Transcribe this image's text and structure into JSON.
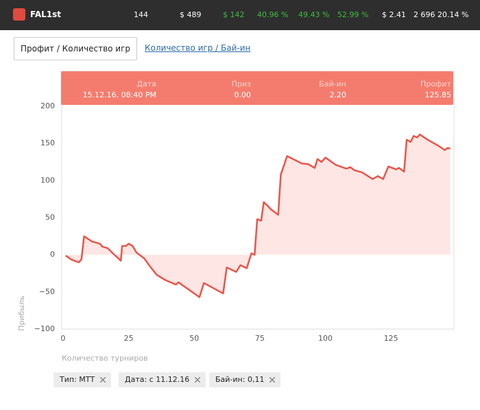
{
  "header": {
    "user": "FAL1st",
    "stats": [
      {
        "text": "144",
        "color": "#ffffff"
      },
      {
        "text": "$ 489",
        "color": "#ffffff"
      },
      {
        "text": "$ 142",
        "color": "#3cbf3c"
      },
      {
        "text": "40.96 %",
        "color": "#3cbf3c"
      },
      {
        "text": "49.43 %",
        "color": "#3cbf3c"
      },
      {
        "text": "52.99 %",
        "color": "#3cbf3c"
      },
      {
        "text": "$ 2.41",
        "color": "#ffffff"
      },
      {
        "text": "2 696",
        "color": "#ffffff"
      },
      {
        "text": "20.14 %",
        "color": "#ffffff"
      }
    ]
  },
  "tabs": [
    "Профит / Количество игр",
    "Количество игр / Бай-ин"
  ],
  "tooltip": {
    "columns": [
      {
        "label": "Дата",
        "value": "15.12.16, 08:40 PM"
      },
      {
        "label": "Приз",
        "value": "0.00"
      },
      {
        "label": "Бай-ин",
        "value": "2.20"
      },
      {
        "label": "Профит",
        "value": "125.85"
      }
    ]
  },
  "chart_data": {
    "type": "line",
    "x_label": "Количество турниров",
    "y_label": "Прибыль",
    "color": "#e8554a",
    "fill_color": "#fde6e3",
    "grid": false,
    "xlim": [
      0,
      149
    ],
    "ylim": [
      -100,
      200
    ],
    "xticks": [
      0,
      25,
      50,
      75,
      100,
      125
    ],
    "yticks": [
      {
        "value": -100,
        "label": "−100"
      },
      {
        "value": -50,
        "label": "−50"
      },
      0,
      50,
      100,
      150,
      200
    ],
    "x": [
      1,
      3,
      5,
      6,
      7,
      8,
      11,
      14,
      15,
      17,
      19,
      22,
      22.5,
      24,
      25,
      26.5,
      28,
      31,
      33,
      35.7,
      39,
      43,
      44,
      52,
      53.7,
      59.5,
      61,
      62.4,
      66,
      67.6,
      70,
      71.8,
      73,
      74,
      75.5,
      76.5,
      78,
      79,
      82,
      83,
      85.4,
      91,
      93.5,
      95.9,
      97,
      98.5,
      100,
      104,
      108,
      109.5,
      111,
      114,
      118,
      120,
      122,
      124,
      127,
      128,
      130,
      131,
      132.5,
      133.6,
      135,
      136,
      139,
      143,
      145.5,
      146.6,
      147.6
    ],
    "values": [
      -1,
      -6,
      -9,
      -10,
      -6,
      25,
      18,
      15,
      11,
      9,
      2,
      -8,
      12,
      12,
      15,
      12,
      3,
      -5,
      -15,
      -27,
      -34,
      -40,
      -37,
      -57,
      -38,
      -49,
      -52,
      -17,
      -23,
      -14,
      -18,
      2,
      0,
      48,
      46,
      71,
      66,
      62,
      54,
      108,
      133,
      123,
      122,
      117,
      129,
      125,
      131,
      121,
      116,
      118,
      114,
      111,
      102,
      106,
      102,
      119,
      115,
      117,
      112,
      155,
      152,
      160,
      158,
      162,
      155,
      147,
      141,
      144,
      143
    ]
  },
  "filters": [
    "Тип: МТТ",
    "Дата: с 11.12.16",
    "Бай-ин: 0,11"
  ]
}
